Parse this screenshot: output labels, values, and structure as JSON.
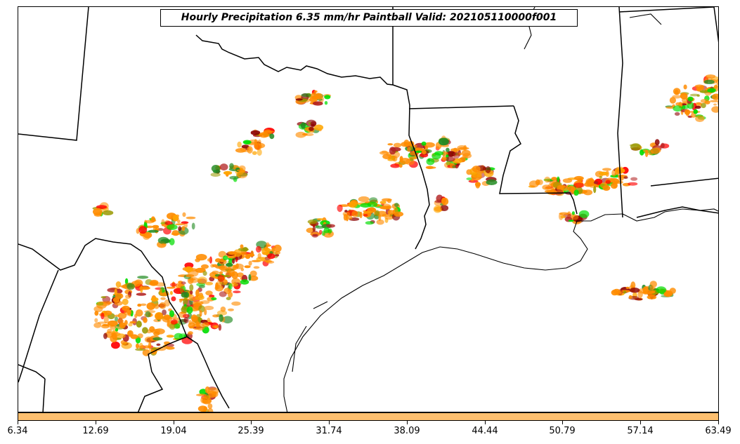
{
  "title": "Hourly Precipitation 6.35 mm/hr Paintball Valid: 202105110000f001",
  "colorbar": {
    "color": "#fdbf6f",
    "ticks": [
      "6.34",
      "12.69",
      "19.04",
      "25.39",
      "31.74",
      "38.09",
      "44.44",
      "50.79",
      "57.14",
      "63.49"
    ]
  },
  "colors": {
    "member_colors": [
      "#ff8c00",
      "#ff0000",
      "#8b0000",
      "#228b22",
      "#00dd00",
      "#999900",
      "#b22222",
      "#ffa500"
    ],
    "boundaries": "#000000",
    "background": "#ffffff"
  }
}
